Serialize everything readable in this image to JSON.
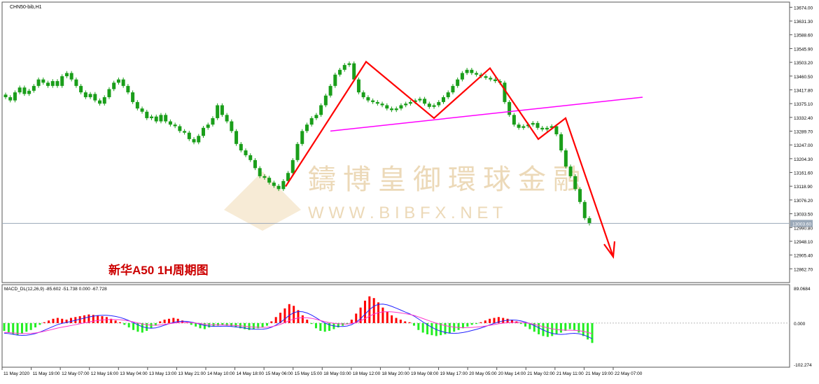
{
  "symbol_label": "CHN50-bib,H1",
  "title": "新华A50 1H周期图",
  "watermark": {
    "brand": "鑄博皇御環球金融",
    "url": "W W W . B I B F X . N E T"
  },
  "macd_label": "MACD_DL(12,26,9) -85.602 -51.738 0.000 -67.728",
  "colors": {
    "bull": "#1a9e1a",
    "bear": "#1a9e1a",
    "trend": "#ff0000",
    "neckline": "#ff00ff",
    "macd_pos": "#ff0000",
    "macd_neg": "#22ee22",
    "macd_line": "#2222ff",
    "signal_line": "#ff33cc",
    "title": "#cc0000"
  },
  "chart_data": [
    {
      "type": "candlestick",
      "y_ticks": [
        "13674.00",
        "13631.30",
        "13588.60",
        "13545.90",
        "13503.20",
        "13460.50",
        "13417.80",
        "13375.10",
        "13332.40",
        "13289.70",
        "13247.00",
        "13204.30",
        "13161.60",
        "13118.90",
        "13076.20",
        "13033.50",
        "12990.80",
        "12948.10",
        "12905.40",
        "12862.70"
      ],
      "ylim": [
        12820,
        13690
      ],
      "current_price": "13003.60",
      "x_labels": [
        "11 May 2020",
        "11 May 19:00",
        "12 May 07:00",
        "12 May 16:00",
        "13 May 04:00",
        "13 May 13:00",
        "13 May 21:00",
        "14 May 10:00",
        "14 May 18:00",
        "15 May 06:00",
        "15 May 15:00",
        "18 May 03:00",
        "18 May 12:00",
        "18 May 20:00",
        "19 May 08:00",
        "19 May 17:00",
        "20 May 05:00",
        "20 May 14:00",
        "21 May 02:00",
        "21 May 11:00",
        "21 May 19:00",
        "22 May 07:00"
      ],
      "closes": [
        13395,
        13385,
        13410,
        13425,
        13405,
        13415,
        13430,
        13450,
        13440,
        13430,
        13445,
        13430,
        13460,
        13470,
        13450,
        13430,
        13410,
        13395,
        13405,
        13385,
        13375,
        13395,
        13420,
        13440,
        13450,
        13430,
        13410,
        13380,
        13360,
        13350,
        13330,
        13335,
        13320,
        13340,
        13320,
        13310,
        13305,
        13290,
        13285,
        13265,
        13255,
        13275,
        13300,
        13310,
        13330,
        13370,
        13340,
        13320,
        13290,
        13250,
        13230,
        13215,
        13200,
        13175,
        13150,
        13145,
        13130,
        13120,
        13110,
        13135,
        13160,
        13200,
        13250,
        13290,
        13310,
        13330,
        13340,
        13370,
        13400,
        13430,
        13465,
        13480,
        13495,
        13500,
        13450,
        13410,
        13395,
        13385,
        13380,
        13375,
        13370,
        13360,
        13355,
        13360,
        13370,
        13375,
        13380,
        13385,
        13390,
        13375,
        13365,
        13370,
        13380,
        13395,
        13410,
        13430,
        13450,
        13470,
        13480,
        13470,
        13465,
        13460,
        13455,
        13450,
        13445,
        13440,
        13380,
        13340,
        13310,
        13300,
        13305,
        13310,
        13315,
        13300,
        13295,
        13300,
        13305,
        13280,
        13230,
        13180,
        13150,
        13110,
        13070,
        13020,
        13003
      ],
      "trend_line": [
        [
          13118,
          13505,
          13330,
          13485,
          13265,
          13330,
          12900
        ]
      ],
      "neckline": [
        13290,
        13395
      ]
    },
    {
      "type": "bar",
      "name": "MACD_DL(12,26,9)",
      "y_ticks": [
        "89.0684",
        "0.000",
        "-102.274"
      ],
      "ylim": [
        -102.274,
        89.0684
      ],
      "values": [
        -18,
        -22,
        -26,
        -28,
        -24,
        -20,
        -16,
        -10,
        -4,
        2,
        6,
        10,
        12,
        10,
        8,
        12,
        14,
        16,
        18,
        20,
        19,
        18,
        16,
        14,
        10,
        6,
        2,
        -4,
        -10,
        -16,
        -20,
        -22,
        -18,
        -12,
        -6,
        4,
        8,
        10,
        12,
        10,
        6,
        2,
        -4,
        -8,
        -12,
        -14,
        -10,
        -8,
        -6,
        -4,
        -6,
        -8,
        -10,
        -12,
        -14,
        -16,
        -14,
        -12,
        -10,
        -6,
        4,
        14,
        24,
        34,
        44,
        40,
        30,
        18,
        8,
        -2,
        -12,
        -18,
        -20,
        -18,
        -14,
        -10,
        -6,
        -2,
        8,
        22,
        36,
        52,
        62,
        58,
        48,
        36,
        26,
        18,
        12,
        8,
        4,
        2,
        -6,
        -16,
        -22,
        -26,
        -28,
        -30,
        -28,
        -26,
        -24,
        -20,
        -16,
        -12,
        -8,
        -4,
        -2,
        2,
        6,
        10,
        12,
        14,
        12,
        10,
        8,
        4,
        -2,
        -8,
        -14,
        -20,
        -26,
        -30,
        -32,
        -30,
        -26,
        -22,
        -18,
        -14,
        -16,
        -22,
        -30,
        -38,
        -46
      ]
    }
  ]
}
